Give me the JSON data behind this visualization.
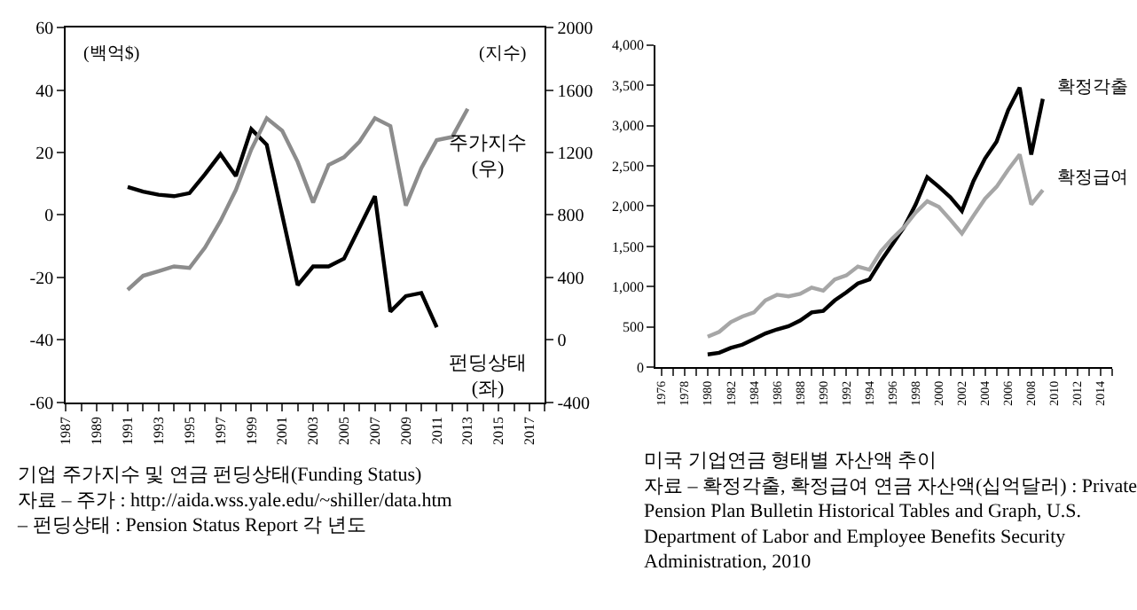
{
  "chart_data": [
    {
      "type": "line",
      "title": "기업 주가지수 및 연금 펀딩상태(Funding Status)",
      "annotations": [
        "자료 – 주가 : http://aida.wss.yale.edu/~shiller/data.htm",
        "– 펀딩상태 : Pension Status Report 각 년도"
      ],
      "ylabel": "(백억$)",
      "y2label": "(지수)",
      "x": [
        1991,
        1992,
        1993,
        1994,
        1995,
        1996,
        1997,
        1998,
        1999,
        2000,
        2001,
        2002,
        2003,
        2004,
        2005,
        2006,
        2007,
        2008,
        2009,
        2010,
        2011,
        2012,
        2013
      ],
      "series": [
        {
          "name": "주가지수\n(우)",
          "color": "#8c8c8c",
          "axis": "y2",
          "values": [
            320,
            410,
            440,
            470,
            460,
            590,
            760,
            960,
            1220,
            1420,
            1340,
            1140,
            880,
            1120,
            1170,
            1270,
            1420,
            1370,
            860,
            1100,
            1280,
            1300,
            1480
          ]
        },
        {
          "name": "펀딩상태\n(좌)",
          "color": "#000000",
          "values": [
            9,
            7.5,
            6.5,
            6,
            7,
            13,
            19.5,
            12.5,
            27.5,
            22.5,
            0,
            -22.5,
            -16.5,
            -16.5,
            -14,
            -4,
            6,
            -31,
            -26,
            -25,
            -36,
            null,
            null
          ]
        }
      ],
      "xlim": [
        1987,
        2018
      ],
      "xticks": [
        1987,
        1989,
        1991,
        1993,
        1995,
        1997,
        1999,
        2001,
        2003,
        2005,
        2007,
        2009,
        2011,
        2013,
        2015,
        2017
      ],
      "ylim": [
        -60,
        60
      ],
      "yticks": [
        -60,
        -40,
        -20,
        0,
        20,
        40,
        60
      ],
      "y2lim": [
        -400,
        2000
      ],
      "y2ticks": [
        -400,
        0,
        400,
        800,
        1200,
        1600,
        2000
      ]
    },
    {
      "type": "line",
      "title": "미국 기업연금 형태별 자산액 추이",
      "annotations": [
        "자료 – 확정각출, 확정급여 연금 자산액(십억달러) : Private Pension Plan Bulletin Historical Tables and Graph, U.S. Department of Labor and Employee Benefits Security Administration, 2010"
      ],
      "x": [
        1980,
        1981,
        1982,
        1983,
        1984,
        1985,
        1986,
        1987,
        1988,
        1989,
        1990,
        1991,
        1992,
        1993,
        1994,
        1995,
        1996,
        1997,
        1998,
        1999,
        2000,
        2001,
        2002,
        2003,
        2004,
        2005,
        2006,
        2007,
        2008,
        2009
      ],
      "series": [
        {
          "name": "확정각출",
          "color": "#000000",
          "values": [
            160,
            180,
            240,
            280,
            350,
            420,
            470,
            510,
            580,
            680,
            700,
            830,
            930,
            1040,
            1090,
            1320,
            1530,
            1740,
            2020,
            2360,
            2240,
            2110,
            1940,
            2310,
            2590,
            2800,
            3190,
            3470,
            2640,
            3330
          ]
        },
        {
          "name": "확정급여",
          "color": "#a6a6a6",
          "values": [
            380,
            440,
            560,
            630,
            680,
            830,
            900,
            880,
            910,
            990,
            950,
            1090,
            1140,
            1250,
            1210,
            1440,
            1600,
            1740,
            1920,
            2060,
            1990,
            1830,
            1660,
            1880,
            2090,
            2240,
            2450,
            2640,
            2020,
            2200
          ]
        }
      ],
      "xlim": [
        1975.5,
        2015
      ],
      "xticks": [
        1976,
        1978,
        1980,
        1982,
        1984,
        1986,
        1988,
        1990,
        1992,
        1994,
        1996,
        1998,
        2000,
        2002,
        2004,
        2006,
        2008,
        2010,
        2012,
        2014
      ],
      "ylim": [
        0,
        4000
      ],
      "yticks": [
        0,
        {
          "value": 500,
          "label": "500"
        },
        {
          "value": 1000,
          "label": "1,000"
        },
        {
          "value": 1500,
          "label": "1,500"
        },
        {
          "value": 2000,
          "label": "2,000"
        },
        {
          "value": 2500,
          "label": "2,500"
        },
        {
          "value": 3000,
          "label": "3,000"
        },
        {
          "value": 3500,
          "label": "3,500"
        },
        {
          "value": 4000,
          "label": "4,000"
        }
      ]
    }
  ]
}
